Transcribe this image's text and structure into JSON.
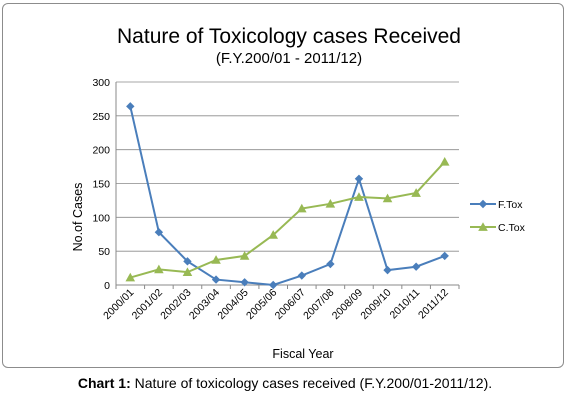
{
  "chart_data": {
    "type": "line",
    "title": "Nature of Toxicology cases Received",
    "subtitle": "(F.Y.200/01 - 2011/12)",
    "xlabel": "Fiscal Year",
    "ylabel": "No.of Cases",
    "ylim": [
      0,
      300
    ],
    "yticks": [
      "0",
      "50",
      "100",
      "150",
      "200",
      "250",
      "300"
    ],
    "categories": [
      "2000/01",
      "2001/02",
      "2002/03",
      "2003/04",
      "2004/05",
      "2005/06",
      "2006/07",
      "2007/08",
      "2008/09",
      "2009/10",
      "2010/11",
      "2011/12"
    ],
    "series": [
      {
        "name": "F.Tox",
        "color": "#4a7ebb",
        "marker": "diamond",
        "values": [
          264,
          78,
          35,
          8,
          4,
          0,
          14,
          31,
          157,
          22,
          27,
          43
        ]
      },
      {
        "name": "C.Tox",
        "color": "#98b954",
        "marker": "triangle",
        "values": [
          11,
          23,
          19,
          37,
          43,
          74,
          113,
          120,
          130,
          128,
          136,
          182
        ]
      }
    ],
    "grid": true,
    "legend_position": "right"
  },
  "caption": {
    "lead": "Chart 1:",
    "text": " Nature of toxicology cases received (F.Y.200/01-2011/12)."
  }
}
